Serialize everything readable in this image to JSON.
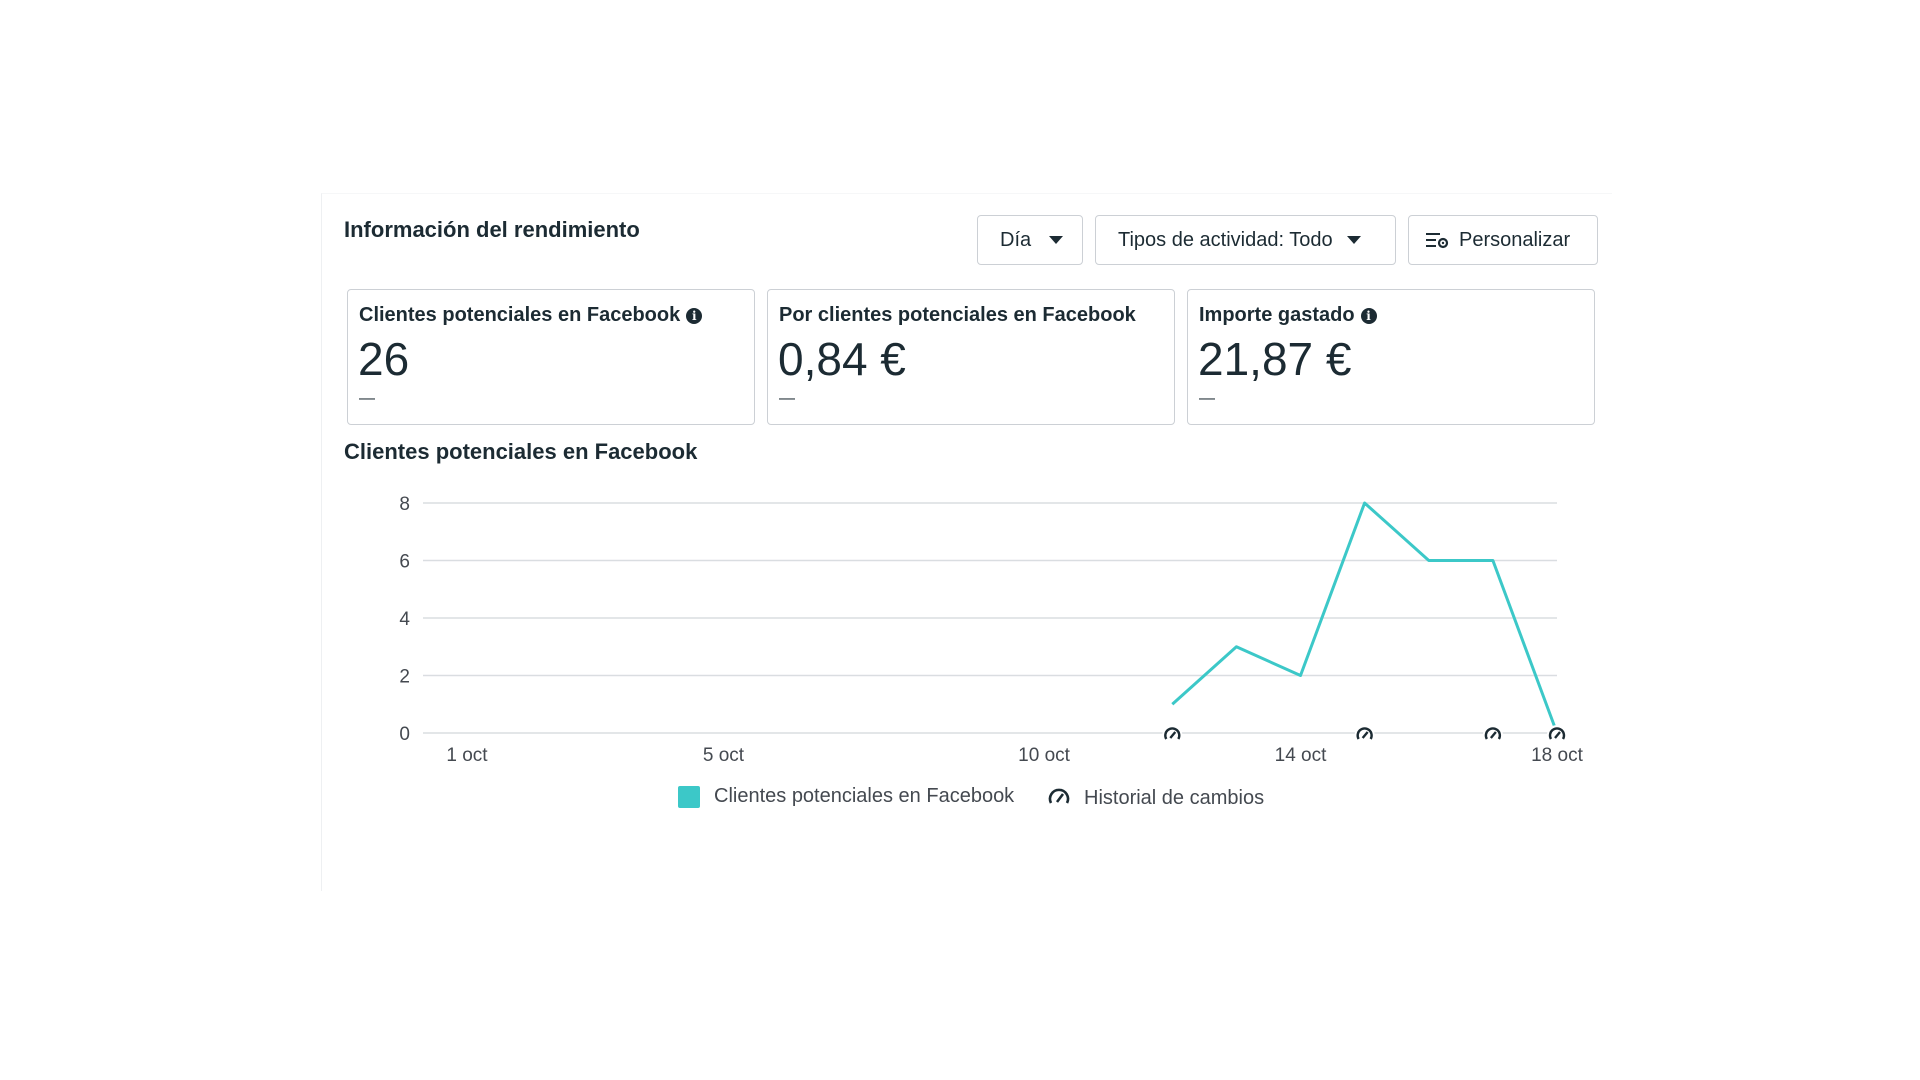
{
  "header": {
    "title": "Información del rendimiento",
    "day_label": "Día",
    "activity_label": "Tipos de actividad: Todo",
    "customize_label": "Personalizar"
  },
  "cards": [
    {
      "label": "Clientes potenciales en Facebook",
      "value": "26",
      "dash": "—",
      "info": true
    },
    {
      "label": "Por clientes potenciales en Facebook",
      "value": "0,84 €",
      "dash": "—",
      "info": false
    },
    {
      "label": "Importe gastado",
      "value": "21,87 €",
      "dash": "—",
      "info": true
    }
  ],
  "chart_title": "Clientes potenciales en Facebook",
  "legend": {
    "series_label": "Clientes potenciales en Facebook",
    "history_label": "Historial de cambios"
  },
  "colors": {
    "series": "#3cc8c8",
    "grid": "#dadde1",
    "text": "#1c2b33"
  },
  "chart_data": {
    "type": "line",
    "x_range": [
      1,
      18
    ],
    "ylim": [
      0,
      8
    ],
    "yticks": [
      0,
      2,
      4,
      6,
      8
    ],
    "xticks": [
      {
        "day": 1,
        "label": "1 oct"
      },
      {
        "day": 5,
        "label": "5 oct"
      },
      {
        "day": 10,
        "label": "10 oct"
      },
      {
        "day": 14,
        "label": "14 oct"
      },
      {
        "day": 18,
        "label": "18 oct"
      }
    ],
    "series": [
      {
        "x": [
          12,
          13,
          14,
          15,
          16,
          17,
          18
        ],
        "values": [
          1,
          3,
          2,
          8,
          6,
          6,
          0
        ]
      }
    ],
    "change_history_days": [
      12,
      15,
      17,
      18
    ],
    "grid": true,
    "legend_position": "bottom"
  }
}
